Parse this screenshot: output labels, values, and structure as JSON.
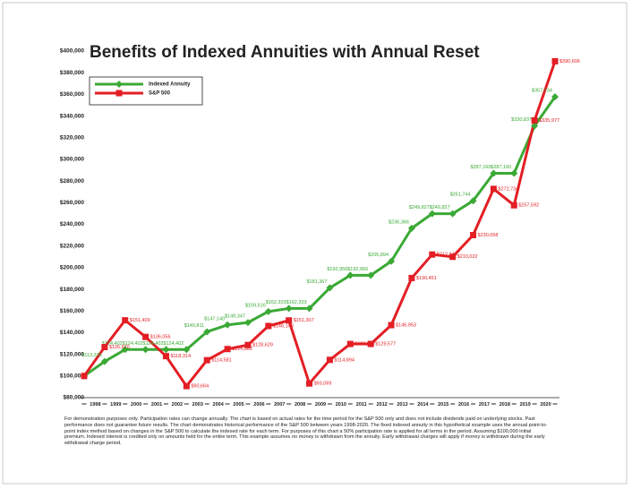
{
  "chart_data": {
    "type": "line",
    "title": "Benefits of Indexed Annuities with Annual Reset",
    "categories": [
      null,
      "1998",
      "1999",
      "2000",
      "2001",
      "2002",
      "2003",
      "2004",
      "2005",
      "2006",
      "2007",
      "2008",
      "2009",
      "2010",
      "2011",
      "2012",
      "2013",
      "2014",
      "2015",
      "2016",
      "2017",
      "2018",
      "2019",
      "2020"
    ],
    "series": [
      {
        "name": "Indexed Annuity",
        "color": "#3aa935",
        "marker": "diamond",
        "values": [
          100000,
          113335,
          124402,
          124402,
          124402,
          124402,
          140811,
          147140,
          149347,
          159516,
          162333,
          162333,
          181367,
          192956,
          192956,
          205894,
          236366,
          249827,
          249827,
          261744,
          287160,
          287160,
          330837,
          357734
        ],
        "value_labels": [
          null,
          "$113,335",
          "$124,402",
          "$124,402",
          "$124,402",
          "$124,402",
          "$140,811",
          "$147,140",
          "$149,347",
          "$159,516",
          "$162,333",
          "$162,333",
          "$181,367",
          "$192,956",
          "$192,956",
          "$205,894",
          "$236,366",
          "$249,827",
          "$249,827",
          "$261,744",
          "$287,160",
          "$287,160",
          "$330,837",
          "$357,734"
        ]
      },
      {
        "name": "S&P 500",
        "color": "#e31e24",
        "marker": "square",
        "values": [
          100000,
          126670,
          151409,
          136056,
          118314,
          90664,
          114581,
          124882,
          128629,
          146148,
          151307,
          93069,
          114894,
          129577,
          129577,
          146953,
          190451,
          212144,
          210022,
          230058,
          272734,
          257592,
          335977,
          390606
        ],
        "value_labels": [
          null,
          "$126,670",
          "$151,409",
          "$136,056",
          "$118,314",
          "$90,664",
          "$114,581",
          "$124,882",
          "$128,629",
          "$146,148",
          "$151,307",
          "$93,069",
          "$114,894",
          "$129,577",
          "$129,577",
          "$146,953",
          "$190,451",
          "$212,144",
          "$210,022",
          "$230,058",
          "$272,734",
          "$257,592",
          "$335,977",
          "$390,606"
        ]
      }
    ],
    "ylim": [
      80000,
      400000
    ],
    "yticks": [
      {
        "value": 80000,
        "label": "$80,000"
      },
      {
        "value": 100000,
        "label": "$100,000"
      },
      {
        "value": 120000,
        "label": "$120,000"
      },
      {
        "value": 140000,
        "label": "$140,000"
      },
      {
        "value": 160000,
        "label": "$160,000"
      },
      {
        "value": 180000,
        "label": "$180,000"
      },
      {
        "value": 200000,
        "label": "$200,000"
      },
      {
        "value": 220000,
        "label": "$220,000"
      },
      {
        "value": 240000,
        "label": "$240,000"
      },
      {
        "value": 260000,
        "label": "$260,000"
      },
      {
        "value": 280000,
        "label": "$280,000"
      },
      {
        "value": 300000,
        "label": "$300,000"
      },
      {
        "value": 320000,
        "label": "$320,000"
      },
      {
        "value": 340000,
        "label": "$340,000"
      },
      {
        "value": 360000,
        "label": "$360,000"
      },
      {
        "value": 380000,
        "label": "$380,000"
      },
      {
        "value": 400000,
        "label": "$400,000"
      }
    ],
    "legend": "upper left",
    "note": "For demonstration purposes only. Participation rates can change annually. The chart is based on actual rates for the time period for the S&P 500 only and does not include dividends paid on underlying stocks. Past performance does not guarantee future results. The chart demonstrates historical performance of the S&P 500 between years 1998-2020. The fixed indexed annuity in this hypothetical example uses the annual point-to-point index method based on changes in the S&P 500 to calculate the indexed rate for each term. For purposes of this chart a 50% participation rate is applied for all terms in the period. Assuming $100,000 initial premium. Indexed interest is credited only on amounts held for the entire term. This example assumes no money is withdrawn from the annuity. Early withdrawal charges will apply if money is withdrawn during the early withdrawal charge period."
  }
}
